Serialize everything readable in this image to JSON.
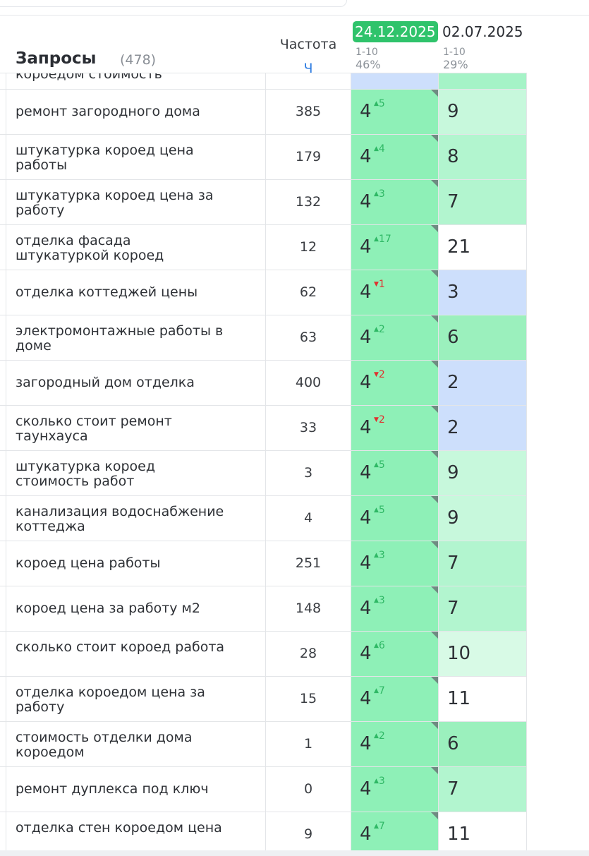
{
  "header": {
    "title": "Запросы",
    "count": "(478)",
    "freq_label": "Частота",
    "freq_sort": "Ч",
    "dates": [
      {
        "label": "24.12.2025",
        "range": "1-10",
        "pct": "46%",
        "highlighted": true
      },
      {
        "label": "02.07.2025",
        "range": "1-10",
        "pct": "29%",
        "highlighted": false
      }
    ]
  },
  "partial_row": {
    "query": "короедом стоимость"
  },
  "colors": {
    "pos_current": "#8ef0b7",
    "badge": "#2fc36b",
    "up": "#2fb865",
    "down": "#e0302e",
    "blue_cell": "#cddffc",
    "green_strong": "#9bf0bd",
    "green_mid": "#b2f5cf",
    "green_light": "#c7f8dc",
    "green_pale": "#d8fae6",
    "white": "#ffffff"
  },
  "rows": [
    {
      "query": "ремонт загородного дома",
      "freq": "385",
      "pos": "4",
      "delta": "5",
      "dir": "up",
      "prev": "9",
      "prev_bg": "green_light"
    },
    {
      "query": "штукатурка короед цена работы",
      "freq": "179",
      "pos": "4",
      "delta": "4",
      "dir": "up",
      "prev": "8",
      "prev_bg": "green_mid"
    },
    {
      "query": "штукатурка короед цена за работу",
      "freq": "132",
      "pos": "4",
      "delta": "3",
      "dir": "up",
      "prev": "7",
      "prev_bg": "green_mid"
    },
    {
      "query": "отделка фасада штукатуркой короед",
      "freq": "12",
      "pos": "4",
      "delta": "17",
      "dir": "up",
      "prev": "21",
      "prev_bg": "white"
    },
    {
      "query": "отделка коттеджей цены",
      "freq": "62",
      "pos": "4",
      "delta": "1",
      "dir": "down",
      "prev": "3",
      "prev_bg": "blue_cell"
    },
    {
      "query": "электромонтажные работы в доме",
      "freq": "63",
      "pos": "4",
      "delta": "2",
      "dir": "up",
      "prev": "6",
      "prev_bg": "green_strong"
    },
    {
      "query": "загородный дом отделка",
      "freq": "400",
      "pos": "4",
      "delta": "2",
      "dir": "down",
      "prev": "2",
      "prev_bg": "blue_cell"
    },
    {
      "query": "сколько стоит ремонт таунхауса",
      "freq": "33",
      "pos": "4",
      "delta": "2",
      "dir": "down",
      "prev": "2",
      "prev_bg": "blue_cell"
    },
    {
      "query": "штукатурка короед стоимость работ",
      "freq": "3",
      "pos": "4",
      "delta": "5",
      "dir": "up",
      "prev": "9",
      "prev_bg": "green_light"
    },
    {
      "query": "канализация водоснабжение коттеджа",
      "freq": "4",
      "pos": "4",
      "delta": "5",
      "dir": "up",
      "prev": "9",
      "prev_bg": "green_light"
    },
    {
      "query": "короед цена работы",
      "freq": "251",
      "pos": "4",
      "delta": "3",
      "dir": "up",
      "prev": "7",
      "prev_bg": "green_mid"
    },
    {
      "query": "короед цена за работу м2",
      "freq": "148",
      "pos": "4",
      "delta": "3",
      "dir": "up",
      "prev": "7",
      "prev_bg": "green_mid"
    },
    {
      "query": "сколько стоит короед работа",
      "freq": "28",
      "pos": "4",
      "delta": "6",
      "dir": "up",
      "prev": "10",
      "prev_bg": "green_pale"
    },
    {
      "query": "отделка короедом цена за работу",
      "freq": "15",
      "pos": "4",
      "delta": "7",
      "dir": "up",
      "prev": "11",
      "prev_bg": "white"
    },
    {
      "query": "стоимость отделки дома короедом",
      "freq": "1",
      "pos": "4",
      "delta": "2",
      "dir": "up",
      "prev": "6",
      "prev_bg": "green_strong"
    },
    {
      "query": "ремонт дуплекса под ключ",
      "freq": "0",
      "pos": "4",
      "delta": "3",
      "dir": "up",
      "prev": "7",
      "prev_bg": "green_mid"
    },
    {
      "query": "отделка стен короедом цена",
      "freq": "9",
      "pos": "4",
      "delta": "7",
      "dir": "up",
      "prev": "11",
      "prev_bg": "white"
    }
  ]
}
